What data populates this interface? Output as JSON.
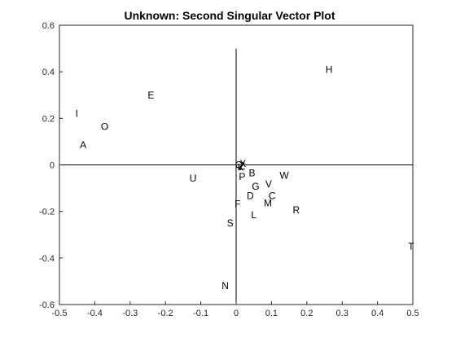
{
  "chart_data": {
    "type": "scatter",
    "title": "Unknown: Second Singular Vector Plot",
    "xlabel": "",
    "ylabel": "",
    "xlim": [
      -0.5,
      0.5
    ],
    "ylim": [
      -0.6,
      0.6
    ],
    "xticks": [
      "-0.5",
      "-0.4",
      "-0.3",
      "-0.2",
      "-0.1",
      "0",
      "0.1",
      "0.2",
      "0.3",
      "0.4",
      "0.5"
    ],
    "yticks": [
      "-0.6",
      "-0.4",
      "-0.2",
      "0",
      "0.2",
      "0.4",
      "0.6"
    ],
    "grid": false,
    "colors": {
      "axes": "#262626",
      "text": "#000000",
      "background": "#ffffff"
    },
    "points": [
      {
        "label": "H",
        "x": 0.263,
        "y": 0.41
      },
      {
        "label": "E",
        "x": -0.241,
        "y": 0.3
      },
      {
        "label": "I",
        "x": -0.451,
        "y": 0.22
      },
      {
        "label": "O",
        "x": -0.372,
        "y": 0.165
      },
      {
        "label": "A",
        "x": -0.433,
        "y": 0.085
      },
      {
        "label": "U",
        "x": -0.122,
        "y": -0.058
      },
      {
        "label": "X",
        "x": 0.019,
        "y": 0.005
      },
      {
        "label": "Q",
        "x": 0.008,
        "y": 0.0
      },
      {
        "label": "Z",
        "x": 0.017,
        "y": -0.005
      },
      {
        "label": "K",
        "x": 0.013,
        "y": -0.01
      },
      {
        "label": "P",
        "x": 0.017,
        "y": -0.05
      },
      {
        "label": "B",
        "x": 0.045,
        "y": -0.035
      },
      {
        "label": "W",
        "x": 0.136,
        "y": -0.045
      },
      {
        "label": "G",
        "x": 0.055,
        "y": -0.093
      },
      {
        "label": "V",
        "x": 0.092,
        "y": -0.083
      },
      {
        "label": "D",
        "x": 0.04,
        "y": -0.133
      },
      {
        "label": "C",
        "x": 0.102,
        "y": -0.133
      },
      {
        "label": "M",
        "x": 0.09,
        "y": -0.165
      },
      {
        "label": "F",
        "x": 0.004,
        "y": -0.168
      },
      {
        "label": "R",
        "x": 0.17,
        "y": -0.195
      },
      {
        "label": "L",
        "x": 0.05,
        "y": -0.215
      },
      {
        "label": "S",
        "x": -0.017,
        "y": -0.25
      },
      {
        "label": "T",
        "x": 0.495,
        "y": -0.35
      },
      {
        "label": "N",
        "x": -0.031,
        "y": -0.52
      }
    ]
  }
}
